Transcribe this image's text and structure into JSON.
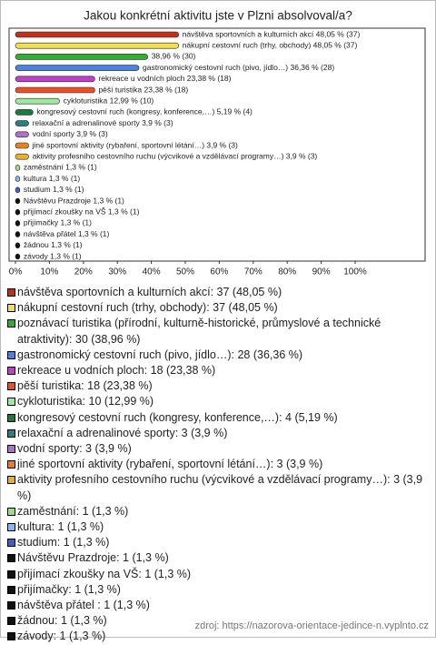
{
  "chart_data": {
    "type": "bar",
    "orientation": "horizontal",
    "title": "Jakou konkrétní aktivitu jste v Plzni absolvoval/a?",
    "values": [
      48.05,
      48.05,
      38.96,
      36.36,
      23.38,
      23.38,
      12.99,
      5.19,
      3.9,
      3.9,
      3.9,
      3.9,
      1.3,
      1.3,
      1.3,
      1.3,
      1.3,
      1.3,
      1.3,
      1.3,
      1.3
    ],
    "value_labels": [
      "návštěva sportovních a kulturních akcí  48,05 % (37)",
      "nákupní cestovní ruch (trhy, obchody) 48,05 % (37)",
      "38,96 % (30)",
      "gastronomický cestovní ruch (pivo, jídlo…) 36,36 % (28)",
      "rekreace u vodních ploch 23,38 % (18)",
      "pěší turistika 23,38 % (18)",
      "cykloturistika 12,99 % (10)",
      "kongresový cestovní ruch (kongresy, konference,…) 5,19 % (4)",
      "relaxační a adrenalinové sporty 3,9 % (3)",
      "vodní sporty 3,9 % (3)",
      "jiné sportovní aktivity (rybaření, sportovní létání…) 3,9 % (3)",
      "aktivity profesního cestovního ruchu (výcvikové a vzdělávací programy…) 3,9 % (3)",
      "zaměstnání 1,3 % (1)",
      "kultura 1,3 % (1)",
      "studium 1,3 % (1)",
      "Návštěvu Prazdroje 1,3 % (1)",
      "přijímací zkoušky na VŠ 1,3 % (1)",
      "přijímačky 1,3 % (1)",
      "návštěva přátel  1,3 % (1)",
      "žádnou 1,3 % (1)",
      "závody 1,3 % (1)"
    ],
    "legend_labels": [
      "návštěva sportovních a kulturních akcí: 37 (48,05 %)",
      "nákupní cestovní ruch (trhy, obchody): 37 (48,05 %)",
      "poznávací turistika (přírodní, kulturně-historické, průmyslové a technické atraktivity): 30 (38,96 %)",
      "gastronomický cestovní ruch (pivo, jídlo…): 28 (36,36 %)",
      "rekreace u vodních ploch: 18 (23,38 %)",
      "pěší turistika: 18 (23,38 %)",
      "cykloturistika: 10 (12,99 %)",
      "kongresový cestovní ruch (kongresy, konference,…): 4 (5,19 %)",
      "relaxační a adrenalinové sporty: 3 (3,9 %)",
      "vodní sporty: 3 (3,9 %)",
      "jiné sportovní aktivity (rybaření, sportovní létání…): 3 (3,9 %)",
      "aktivity profesního cestovního ruchu (výcvikové a vzdělávací programy…): 3 (3,9 %)",
      "zaměstnání: 1 (1,3 %)",
      "kultura: 1 (1,3 %)",
      "studium: 1 (1,3 %)",
      "Návštěvu Prazdroje: 1 (1,3 %)",
      "přijímací zkoušky na VŠ: 1 (1,3 %)",
      "přijímačky: 1 (1,3 %)",
      "návštěva přátel : 1 (1,3 %)",
      "žádnou: 1 (1,3 %)",
      "závody: 1 (1,3 %)"
    ],
    "colors": [
      "#c0301c",
      "#f4e04c",
      "#30b030",
      "#4a80e8",
      "#c040c8",
      "#e85028",
      "#a0e8a0",
      "#1a7a40",
      "#2a8080",
      "#b070c8",
      "#e88020",
      "#e8b030",
      "#98e078",
      "#88b8f0",
      "#4060c8",
      "#111111",
      "#111111",
      "#111111",
      "#111111",
      "#111111",
      "#111111"
    ],
    "xlim": [
      0,
      100
    ],
    "xticks": [
      {
        "value": 0,
        "label": "0%"
      },
      {
        "value": 10,
        "label": "10%"
      },
      {
        "value": 20,
        "label": "20%"
      },
      {
        "value": 30,
        "label": "30%"
      },
      {
        "value": 40,
        "label": "40%"
      },
      {
        "value": 50,
        "label": "50%"
      },
      {
        "value": 60,
        "label": "60%"
      },
      {
        "value": 70,
        "label": "70%"
      },
      {
        "value": 80,
        "label": "80%"
      },
      {
        "value": 90,
        "label": "90%"
      },
      {
        "value": 100,
        "label": "100%"
      }
    ],
    "source": "zdroj: https://nazorova-orientace-jedince-n.vyplnto.cz"
  }
}
